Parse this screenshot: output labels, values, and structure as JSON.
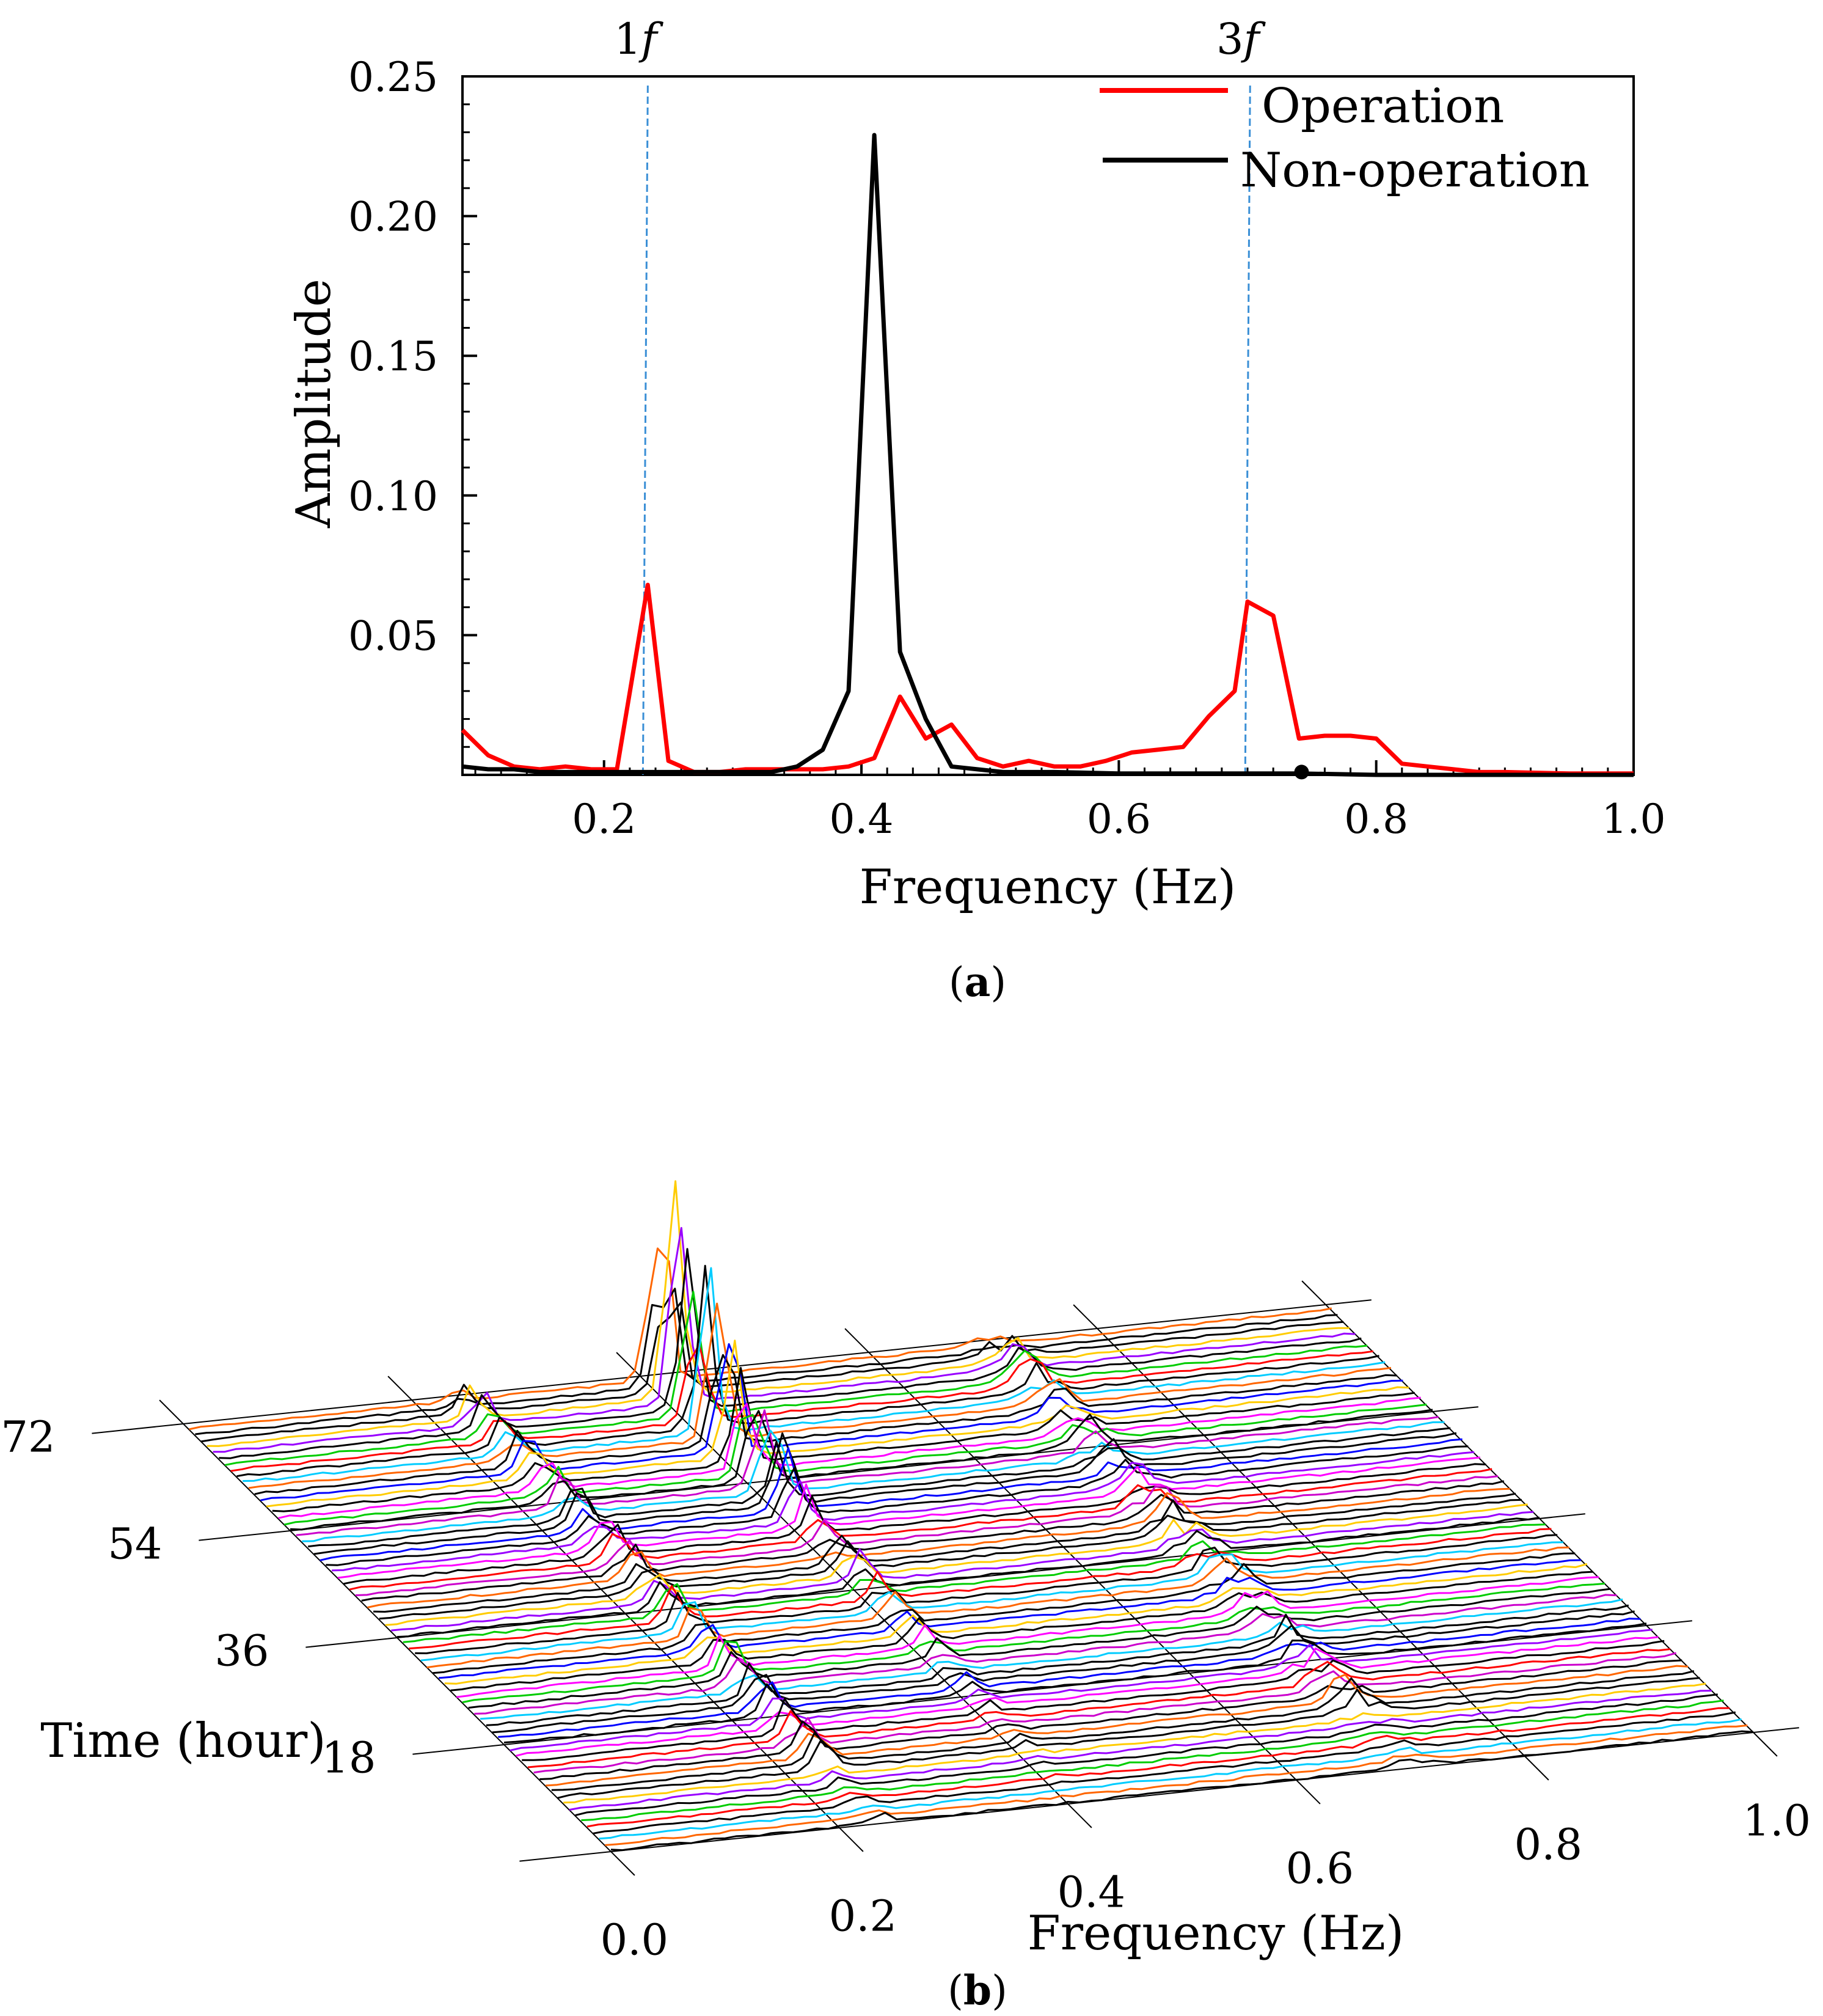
{
  "chart_data": [
    {
      "type": "line",
      "panel_label": "a",
      "title": "",
      "xlabel": "Frequency (Hz)",
      "ylabel": "Amplitude",
      "xlim": [
        0.09,
        1.0
      ],
      "ylim": [
        0,
        0.25
      ],
      "xticks": [
        "0.2",
        "0.4",
        "0.6",
        "0.8",
        "1.0"
      ],
      "yticks": [
        "0.05",
        "0.10",
        "0.15",
        "0.20",
        "0.25"
      ],
      "reference_lines": [
        {
          "label": "1",
          "label_italic": "f",
          "x": 0.234
        },
        {
          "label": "3",
          "label_italic": "f",
          "x": 0.702
        }
      ],
      "legend": {
        "position": "top-right",
        "entries": [
          "Operation",
          "Non-operation"
        ]
      },
      "series": [
        {
          "name": "Operation",
          "color": "#ff0000",
          "x": [
            0.09,
            0.11,
            0.13,
            0.15,
            0.17,
            0.19,
            0.21,
            0.234,
            0.25,
            0.27,
            0.29,
            0.31,
            0.33,
            0.35,
            0.37,
            0.39,
            0.41,
            0.43,
            0.45,
            0.47,
            0.49,
            0.51,
            0.53,
            0.55,
            0.57,
            0.59,
            0.61,
            0.63,
            0.65,
            0.67,
            0.69,
            0.7,
            0.72,
            0.74,
            0.76,
            0.78,
            0.8,
            0.82,
            0.84,
            0.86,
            0.88,
            0.9,
            0.95,
            1.0
          ],
          "values": [
            0.016,
            0.007,
            0.003,
            0.002,
            0.003,
            0.002,
            0.002,
            0.068,
            0.005,
            0.001,
            0.001,
            0.002,
            0.002,
            0.002,
            0.002,
            0.003,
            0.006,
            0.028,
            0.013,
            0.018,
            0.006,
            0.003,
            0.005,
            0.003,
            0.003,
            0.005,
            0.008,
            0.009,
            0.01,
            0.021,
            0.03,
            0.062,
            0.057,
            0.013,
            0.014,
            0.014,
            0.013,
            0.004,
            0.003,
            0.002,
            0.001,
            0.001,
            0.0005,
            0.0005
          ]
        },
        {
          "name": "Non-operation",
          "color": "#000000",
          "x": [
            0.09,
            0.11,
            0.13,
            0.15,
            0.17,
            0.19,
            0.21,
            0.23,
            0.25,
            0.27,
            0.29,
            0.31,
            0.33,
            0.35,
            0.37,
            0.39,
            0.41,
            0.43,
            0.45,
            0.47,
            0.49,
            0.51,
            0.55,
            0.6,
            0.7,
            0.74,
            0.8,
            0.9,
            1.0
          ],
          "values": [
            0.003,
            0.002,
            0.002,
            0.001,
            0.001,
            0.001,
            0.001,
            0.001,
            0.001,
            0.001,
            0.001,
            0.001,
            0.001,
            0.003,
            0.009,
            0.03,
            0.229,
            0.044,
            0.02,
            0.003,
            0.002,
            0.001,
            0.001,
            0.0005,
            0.0005,
            0.0005,
            0.0,
            0.0,
            0.0
          ]
        }
      ],
      "marker": {
        "x": 0.742,
        "y": 0.001
      }
    },
    {
      "type": "waterfall",
      "panel_label": "b",
      "title": "",
      "xlabel": "Frequency (Hz)",
      "ylabel": "Time (hour)",
      "xlim": [
        0.0,
        1.0
      ],
      "ylim": [
        0,
        72
      ],
      "xticks": [
        "0.0",
        "0.2",
        "0.4",
        "0.6",
        "0.8",
        "1.0"
      ],
      "yticks": [
        "18",
        "36",
        "54",
        "72"
      ],
      "num_traces": 72,
      "description_note": "Spectra stacked over time; peaks near 0.23, 0.41 and 0.70 Hz",
      "peak_frequencies": [
        0.234,
        0.41,
        0.7
      ],
      "trace_colors": [
        "#000000",
        "#cc00cc",
        "#ff00ff",
        "#0000ff",
        "#00ccff",
        "#00cc00",
        "#ffcc00",
        "#ff6600",
        "#ff0000",
        "#9900ff"
      ]
    }
  ]
}
